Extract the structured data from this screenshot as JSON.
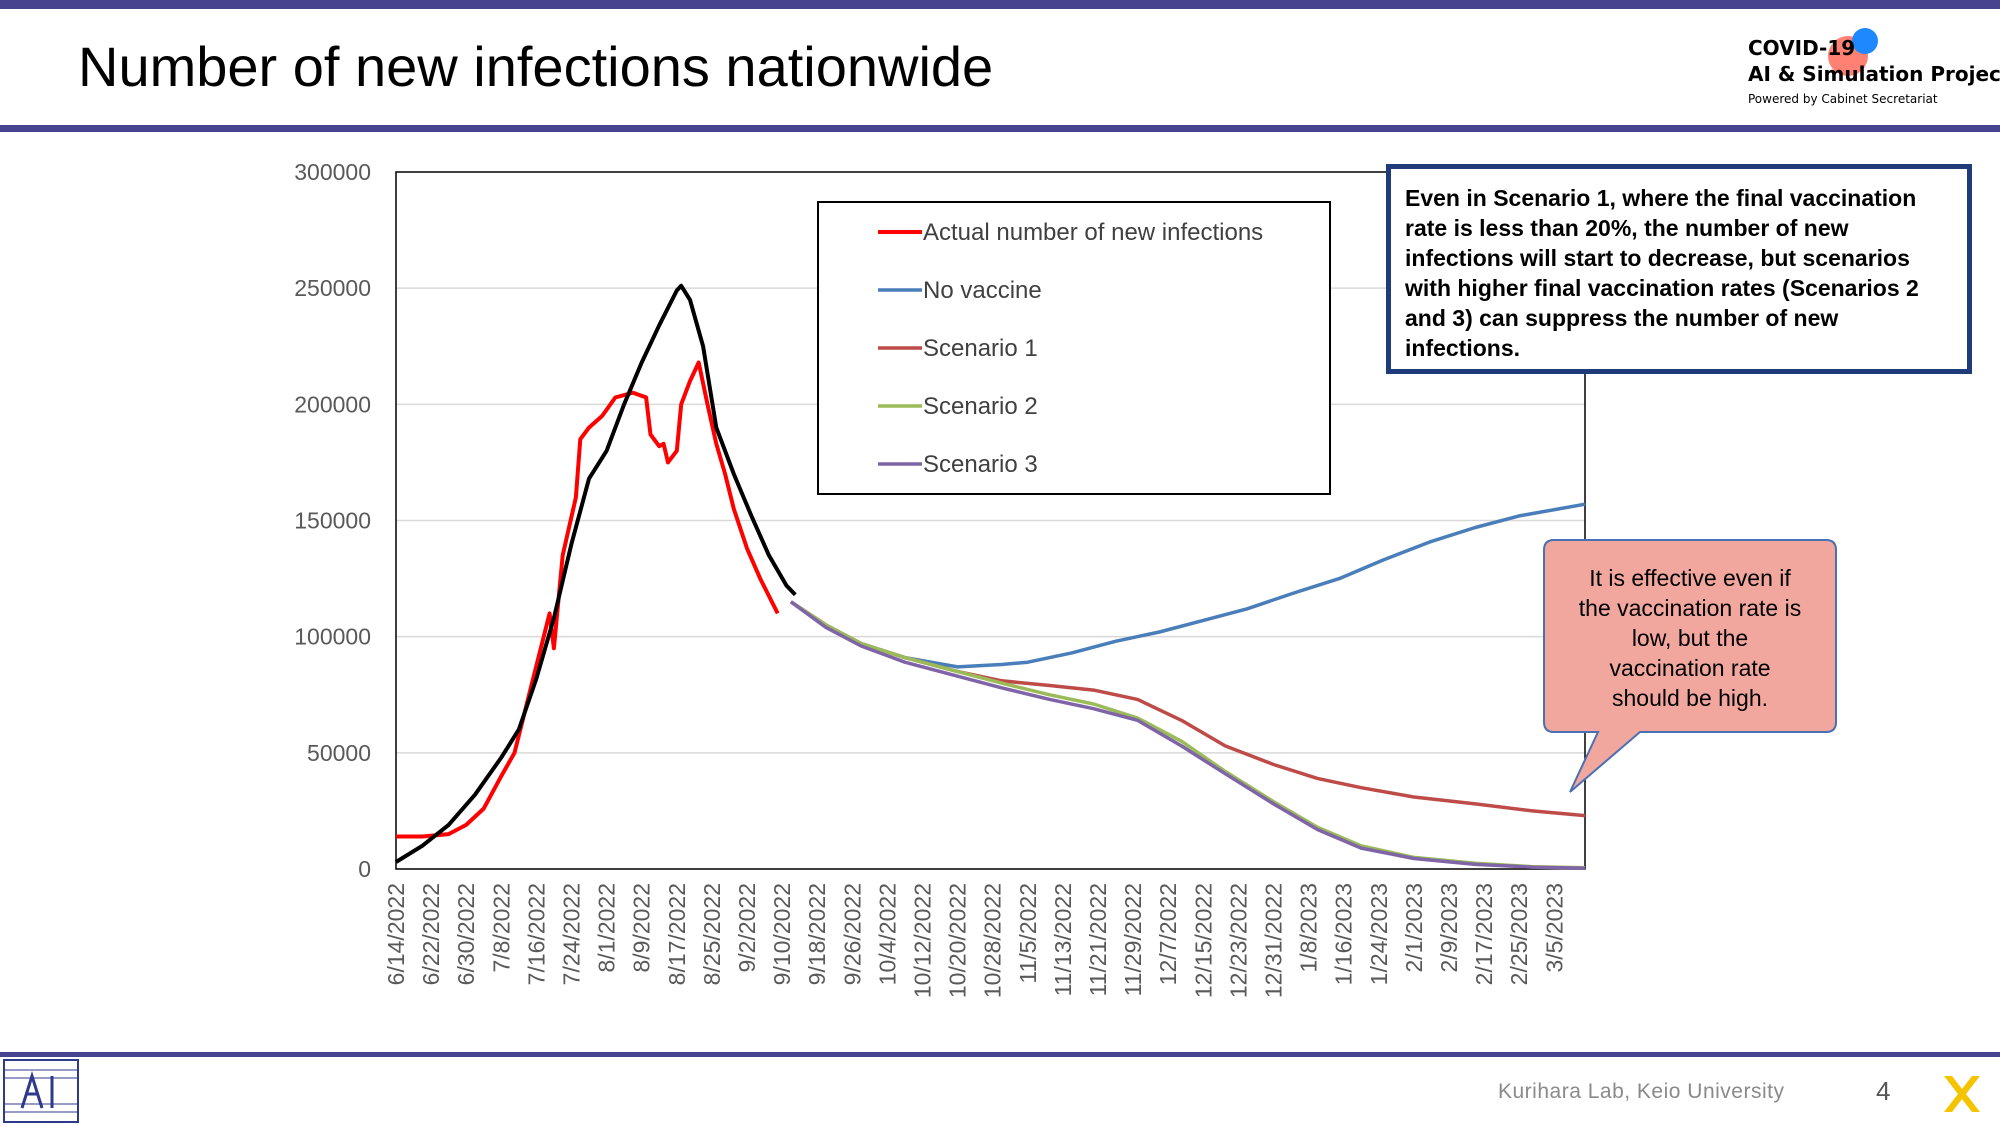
{
  "page": {
    "title": "Number of new infections nationwide",
    "logo": {
      "line1": "COVID-19",
      "line2": "AI & Simulation Project",
      "line3": "Powered by Cabinet Secretariat"
    },
    "footer": "Kurihara Lab, Keio University",
    "page_number": "4"
  },
  "callouts": {
    "box": "Even in Scenario 1, where the final vaccination rate is less than 20%, the number of new infections will start to decrease, but scenarios with higher final vaccination rates (Scenarios 2 and 3) can suppress the number of new infections.",
    "bubble": "It is effective even if the vaccination rate is low, but the vaccination rate should be high."
  },
  "chart_data": {
    "type": "line",
    "ylim": [
      0,
      300000
    ],
    "yticks": [
      0,
      50000,
      100000,
      150000,
      200000,
      250000,
      300000
    ],
    "xlim": [
      "6/14/2022",
      "3/12/2023"
    ],
    "xticks": [
      "6/14/2022",
      "6/22/2022",
      "6/30/2022",
      "7/8/2022",
      "7/16/2022",
      "7/24/2022",
      "8/1/2022",
      "8/9/2022",
      "8/17/2022",
      "8/25/2022",
      "9/2/2022",
      "9/10/2022",
      "9/18/2022",
      "9/26/2022",
      "10/4/2022",
      "10/12/2022",
      "10/20/2022",
      "10/28/2022",
      "11/5/2022",
      "11/13/2022",
      "11/21/2022",
      "11/29/2022",
      "12/7/2022",
      "12/15/2022",
      "12/23/2022",
      "12/31/2022",
      "1/8/2023",
      "1/16/2023",
      "1/24/2023",
      "2/1/2023",
      "2/9/2023",
      "2/17/2023",
      "2/25/2023",
      "3/5/2023"
    ],
    "legend_position": "top-center",
    "grid": "horizontal",
    "series": [
      {
        "name": "Actual number of new infections",
        "color": "#ff0000",
        "points": [
          [
            "6/14/2022",
            14000
          ],
          [
            "6/20/2022",
            14000
          ],
          [
            "6/26/2022",
            15000
          ],
          [
            "6/30/2022",
            19000
          ],
          [
            "7/4/2022",
            26000
          ],
          [
            "7/8/2022",
            40000
          ],
          [
            "7/11/2022",
            50000
          ],
          [
            "7/15/2022",
            80000
          ],
          [
            "7/19/2022",
            110000
          ],
          [
            "7/20/2022",
            95000
          ],
          [
            "7/22/2022",
            135000
          ],
          [
            "7/25/2022",
            160000
          ],
          [
            "7/26/2022",
            185000
          ],
          [
            "7/28/2022",
            190000
          ],
          [
            "7/31/2022",
            195000
          ],
          [
            "8/3/2022",
            203000
          ],
          [
            "8/7/2022",
            205000
          ],
          [
            "8/10/2022",
            203000
          ],
          [
            "8/11/2022",
            187000
          ],
          [
            "8/13/2022",
            182000
          ],
          [
            "8/14/2022",
            183000
          ],
          [
            "8/15/2022",
            175000
          ],
          [
            "8/17/2022",
            180000
          ],
          [
            "8/18/2022",
            200000
          ],
          [
            "8/20/2022",
            210000
          ],
          [
            "8/22/2022",
            218000
          ],
          [
            "8/24/2022",
            200000
          ],
          [
            "8/26/2022",
            183000
          ],
          [
            "8/28/2022",
            170000
          ],
          [
            "8/30/2022",
            155000
          ],
          [
            "9/2/2022",
            138000
          ],
          [
            "9/5/2022",
            125000
          ],
          [
            "9/9/2022",
            110000
          ]
        ]
      },
      {
        "name": "No vaccine",
        "color": "#4a7ebb",
        "points": [
          [
            "9/12/2022",
            115000
          ],
          [
            "9/20/2022",
            105000
          ],
          [
            "9/28/2022",
            97000
          ],
          [
            "10/8/2022",
            91000
          ],
          [
            "10/20/2022",
            87000
          ],
          [
            "10/30/2022",
            88000
          ],
          [
            "11/5/2022",
            89000
          ],
          [
            "11/15/2022",
            93000
          ],
          [
            "11/25/2022",
            98000
          ],
          [
            "12/5/2022",
            102000
          ],
          [
            "12/15/2022",
            107000
          ],
          [
            "12/25/2022",
            112000
          ],
          [
            "1/5/2023",
            119000
          ],
          [
            "1/15/2023",
            125000
          ],
          [
            "1/25/2023",
            133000
          ],
          [
            "2/5/2023",
            141000
          ],
          [
            "2/15/2023",
            147000
          ],
          [
            "2/25/2023",
            152000
          ],
          [
            "3/12/2023",
            157000
          ]
        ]
      },
      {
        "name": "Scenario 1",
        "color": "#be4b48",
        "points": [
          [
            "9/12/2022",
            115000
          ],
          [
            "9/20/2022",
            105000
          ],
          [
            "9/28/2022",
            97000
          ],
          [
            "10/8/2022",
            91000
          ],
          [
            "10/20/2022",
            85000
          ],
          [
            "10/30/2022",
            81000
          ],
          [
            "11/10/2022",
            79000
          ],
          [
            "11/20/2022",
            77000
          ],
          [
            "11/30/2022",
            73000
          ],
          [
            "12/10/2022",
            64000
          ],
          [
            "12/20/2022",
            53000
          ],
          [
            "12/31/2022",
            45000
          ],
          [
            "1/10/2023",
            39000
          ],
          [
            "1/20/2023",
            35000
          ],
          [
            "2/1/2023",
            31000
          ],
          [
            "2/15/2023",
            28000
          ],
          [
            "2/28/2023",
            25000
          ],
          [
            "3/12/2023",
            23000
          ]
        ]
      },
      {
        "name": "Scenario 2",
        "color": "#9bbb59",
        "points": [
          [
            "9/12/2022",
            115000
          ],
          [
            "9/20/2022",
            105000
          ],
          [
            "9/28/2022",
            97000
          ],
          [
            "10/8/2022",
            91000
          ],
          [
            "10/20/2022",
            85000
          ],
          [
            "10/30/2022",
            80000
          ],
          [
            "11/10/2022",
            75000
          ],
          [
            "11/20/2022",
            71000
          ],
          [
            "11/30/2022",
            65000
          ],
          [
            "12/10/2022",
            55000
          ],
          [
            "12/20/2022",
            42000
          ],
          [
            "12/31/2022",
            29000
          ],
          [
            "1/10/2023",
            18000
          ],
          [
            "1/20/2023",
            10000
          ],
          [
            "2/1/2023",
            5000
          ],
          [
            "2/15/2023",
            2500
          ],
          [
            "2/28/2023",
            1000
          ],
          [
            "3/12/2023",
            500
          ]
        ]
      },
      {
        "name": "Scenario 3",
        "color": "#7f65a8",
        "points": [
          [
            "9/12/2022",
            115000
          ],
          [
            "9/20/2022",
            104000
          ],
          [
            "9/28/2022",
            96000
          ],
          [
            "10/8/2022",
            89000
          ],
          [
            "10/20/2022",
            83000
          ],
          [
            "10/30/2022",
            78000
          ],
          [
            "11/10/2022",
            73000
          ],
          [
            "11/20/2022",
            69000
          ],
          [
            "11/30/2022",
            64000
          ],
          [
            "12/10/2022",
            53000
          ],
          [
            "12/20/2022",
            41000
          ],
          [
            "12/31/2022",
            28000
          ],
          [
            "1/10/2023",
            17000
          ],
          [
            "1/20/2023",
            9000
          ],
          [
            "2/1/2023",
            4500
          ],
          [
            "2/15/2023",
            2000
          ],
          [
            "2/28/2023",
            800
          ],
          [
            "3/12/2023",
            300
          ]
        ]
      },
      {
        "name": "",
        "color": "#000000",
        "points": [
          [
            "6/14/2022",
            3000
          ],
          [
            "6/20/2022",
            10000
          ],
          [
            "6/26/2022",
            19000
          ],
          [
            "7/2/2022",
            32000
          ],
          [
            "7/8/2022",
            48000
          ],
          [
            "7/12/2022",
            60000
          ],
          [
            "7/16/2022",
            82000
          ],
          [
            "7/20/2022",
            108000
          ],
          [
            "7/24/2022",
            140000
          ],
          [
            "7/28/2022",
            168000
          ],
          [
            "8/1/2022",
            180000
          ],
          [
            "8/5/2022",
            200000
          ],
          [
            "8/9/2022",
            218000
          ],
          [
            "8/13/2022",
            234000
          ],
          [
            "8/17/2022",
            249000
          ],
          [
            "8/18/2022",
            251000
          ],
          [
            "8/20/2022",
            245000
          ],
          [
            "8/23/2022",
            225000
          ],
          [
            "8/26/2022",
            190000
          ],
          [
            "8/30/2022",
            170000
          ],
          [
            "9/3/2022",
            152000
          ],
          [
            "9/7/2022",
            135000
          ],
          [
            "9/11/2022",
            122000
          ],
          [
            "9/13/2022",
            118000
          ]
        ]
      }
    ]
  }
}
